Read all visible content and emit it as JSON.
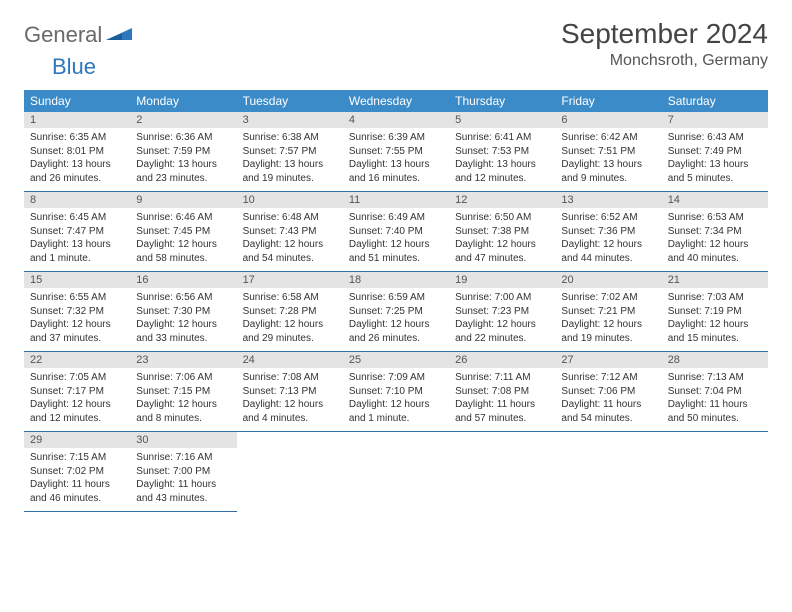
{
  "logo": {
    "textA": "General",
    "textB": "Blue"
  },
  "title": "September 2024",
  "location": "Monchsroth, Germany",
  "colors": {
    "header_bg": "#3b8bc8",
    "header_text": "#ffffff",
    "daynum_bg": "#e4e4e4",
    "row_border": "#2f6fa8",
    "logo_gray": "#6a6a6a",
    "logo_blue": "#2f77bb",
    "title_color": "#444444",
    "body_text": "#333333",
    "page_bg": "#ffffff"
  },
  "weekdays": [
    "Sunday",
    "Monday",
    "Tuesday",
    "Wednesday",
    "Thursday",
    "Friday",
    "Saturday"
  ],
  "weeks": [
    [
      {
        "n": "1",
        "sr": "6:35 AM",
        "ss": "8:01 PM",
        "dl": "13 hours and 26 minutes."
      },
      {
        "n": "2",
        "sr": "6:36 AM",
        "ss": "7:59 PM",
        "dl": "13 hours and 23 minutes."
      },
      {
        "n": "3",
        "sr": "6:38 AM",
        "ss": "7:57 PM",
        "dl": "13 hours and 19 minutes."
      },
      {
        "n": "4",
        "sr": "6:39 AM",
        "ss": "7:55 PM",
        "dl": "13 hours and 16 minutes."
      },
      {
        "n": "5",
        "sr": "6:41 AM",
        "ss": "7:53 PM",
        "dl": "13 hours and 12 minutes."
      },
      {
        "n": "6",
        "sr": "6:42 AM",
        "ss": "7:51 PM",
        "dl": "13 hours and 9 minutes."
      },
      {
        "n": "7",
        "sr": "6:43 AM",
        "ss": "7:49 PM",
        "dl": "13 hours and 5 minutes."
      }
    ],
    [
      {
        "n": "8",
        "sr": "6:45 AM",
        "ss": "7:47 PM",
        "dl": "13 hours and 1 minute."
      },
      {
        "n": "9",
        "sr": "6:46 AM",
        "ss": "7:45 PM",
        "dl": "12 hours and 58 minutes."
      },
      {
        "n": "10",
        "sr": "6:48 AM",
        "ss": "7:43 PM",
        "dl": "12 hours and 54 minutes."
      },
      {
        "n": "11",
        "sr": "6:49 AM",
        "ss": "7:40 PM",
        "dl": "12 hours and 51 minutes."
      },
      {
        "n": "12",
        "sr": "6:50 AM",
        "ss": "7:38 PM",
        "dl": "12 hours and 47 minutes."
      },
      {
        "n": "13",
        "sr": "6:52 AM",
        "ss": "7:36 PM",
        "dl": "12 hours and 44 minutes."
      },
      {
        "n": "14",
        "sr": "6:53 AM",
        "ss": "7:34 PM",
        "dl": "12 hours and 40 minutes."
      }
    ],
    [
      {
        "n": "15",
        "sr": "6:55 AM",
        "ss": "7:32 PM",
        "dl": "12 hours and 37 minutes."
      },
      {
        "n": "16",
        "sr": "6:56 AM",
        "ss": "7:30 PM",
        "dl": "12 hours and 33 minutes."
      },
      {
        "n": "17",
        "sr": "6:58 AM",
        "ss": "7:28 PM",
        "dl": "12 hours and 29 minutes."
      },
      {
        "n": "18",
        "sr": "6:59 AM",
        "ss": "7:25 PM",
        "dl": "12 hours and 26 minutes."
      },
      {
        "n": "19",
        "sr": "7:00 AM",
        "ss": "7:23 PM",
        "dl": "12 hours and 22 minutes."
      },
      {
        "n": "20",
        "sr": "7:02 AM",
        "ss": "7:21 PM",
        "dl": "12 hours and 19 minutes."
      },
      {
        "n": "21",
        "sr": "7:03 AM",
        "ss": "7:19 PM",
        "dl": "12 hours and 15 minutes."
      }
    ],
    [
      {
        "n": "22",
        "sr": "7:05 AM",
        "ss": "7:17 PM",
        "dl": "12 hours and 12 minutes."
      },
      {
        "n": "23",
        "sr": "7:06 AM",
        "ss": "7:15 PM",
        "dl": "12 hours and 8 minutes."
      },
      {
        "n": "24",
        "sr": "7:08 AM",
        "ss": "7:13 PM",
        "dl": "12 hours and 4 minutes."
      },
      {
        "n": "25",
        "sr": "7:09 AM",
        "ss": "7:10 PM",
        "dl": "12 hours and 1 minute."
      },
      {
        "n": "26",
        "sr": "7:11 AM",
        "ss": "7:08 PM",
        "dl": "11 hours and 57 minutes."
      },
      {
        "n": "27",
        "sr": "7:12 AM",
        "ss": "7:06 PM",
        "dl": "11 hours and 54 minutes."
      },
      {
        "n": "28",
        "sr": "7:13 AM",
        "ss": "7:04 PM",
        "dl": "11 hours and 50 minutes."
      }
    ],
    [
      {
        "n": "29",
        "sr": "7:15 AM",
        "ss": "7:02 PM",
        "dl": "11 hours and 46 minutes."
      },
      {
        "n": "30",
        "sr": "7:16 AM",
        "ss": "7:00 PM",
        "dl": "11 hours and 43 minutes."
      },
      null,
      null,
      null,
      null,
      null
    ]
  ],
  "labels": {
    "sunrise": "Sunrise:",
    "sunset": "Sunset:",
    "daylight": "Daylight:"
  },
  "typography": {
    "title_fontsize": 28,
    "location_fontsize": 16,
    "th_fontsize": 12,
    "daynum_fontsize": 11,
    "body_fontsize": 10
  }
}
